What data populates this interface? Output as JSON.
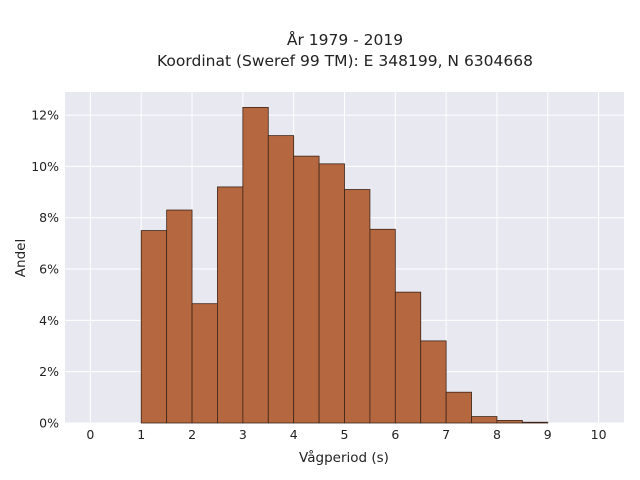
{
  "chart_data": {
    "type": "bar",
    "title_line1": "År 1979 - 2019",
    "title_line2": "Koordinat (Sweref 99 TM): E 348199, N 6304668",
    "xlabel": "Vågperiod (s)",
    "ylabel": "Andel",
    "xlim": [
      -0.5,
      10.5
    ],
    "ylim": [
      0,
      12.9
    ],
    "x_ticks": [
      0,
      1,
      2,
      3,
      4,
      5,
      6,
      7,
      8,
      9,
      10
    ],
    "y_ticks": [
      0,
      2,
      4,
      6,
      8,
      10,
      12
    ],
    "y_tick_labels": [
      "0%",
      "2%",
      "4%",
      "6%",
      "8%",
      "10%",
      "12%"
    ],
    "bin_width": 0.5,
    "bins": [
      {
        "start": 1.0,
        "value": 7.5
      },
      {
        "start": 1.5,
        "value": 8.3
      },
      {
        "start": 2.0,
        "value": 4.65
      },
      {
        "start": 2.5,
        "value": 9.2
      },
      {
        "start": 3.0,
        "value": 12.3
      },
      {
        "start": 3.5,
        "value": 11.2
      },
      {
        "start": 4.0,
        "value": 10.4
      },
      {
        "start": 4.5,
        "value": 10.1
      },
      {
        "start": 5.0,
        "value": 9.1
      },
      {
        "start": 5.5,
        "value": 7.55
      },
      {
        "start": 6.0,
        "value": 5.1
      },
      {
        "start": 6.5,
        "value": 3.2
      },
      {
        "start": 7.0,
        "value": 1.2
      },
      {
        "start": 7.5,
        "value": 0.25
      },
      {
        "start": 8.0,
        "value": 0.1
      },
      {
        "start": 8.5,
        "value": 0.03
      }
    ],
    "bar_color": "#b5673f",
    "bar_edge_color": "#3d2418",
    "plot_background": "#e8e8f0",
    "grid_color": "#ffffff",
    "grid": true
  }
}
